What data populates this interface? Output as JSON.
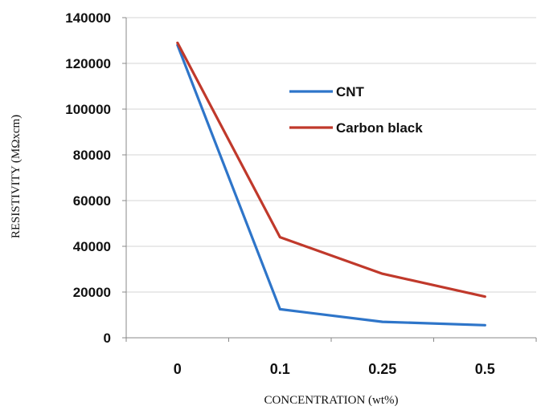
{
  "chart_data": {
    "type": "line",
    "title": "",
    "xlabel": "CONCENTRATION (wt%)",
    "ylabel": "RESISTIVITY (MΩxcm)",
    "categories": [
      "0",
      "0.1",
      "0.25",
      "0.5"
    ],
    "ylim": [
      0,
      140000
    ],
    "yticks": [
      "0",
      "20000",
      "40000",
      "60000",
      "80000",
      "100000",
      "120000",
      "140000"
    ],
    "grid": true,
    "legend_position": "top-right",
    "series": [
      {
        "name": "CNT",
        "color": "#2e75c9",
        "values": [
          128000,
          12500,
          7000,
          5500
        ]
      },
      {
        "name": "Carbon black",
        "color": "#c0392b",
        "values": [
          129000,
          44000,
          28000,
          18000
        ]
      }
    ]
  }
}
